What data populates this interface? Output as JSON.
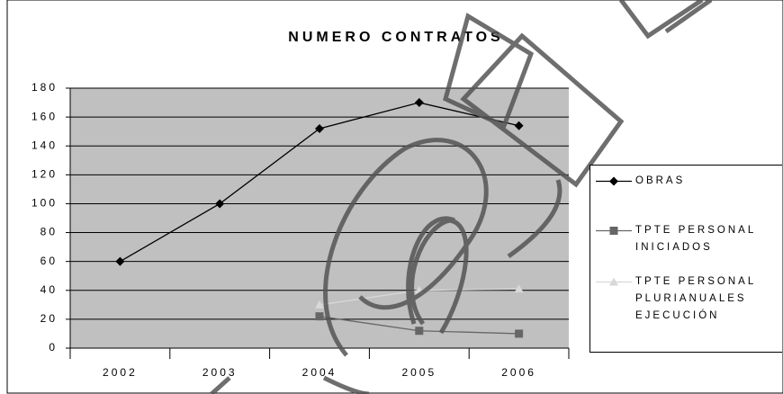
{
  "chart_data": {
    "type": "line",
    "title": "NUMERO CONTRATOS",
    "categories": [
      "2002",
      "2003",
      "2004",
      "2005",
      "2006"
    ],
    "series": [
      {
        "name": "OBRAS",
        "color": "#000000",
        "marker": "diamond",
        "values": [
          60,
          100,
          152,
          170,
          154
        ]
      },
      {
        "name": "TPTE PERSONAL INICIADOS",
        "color": "#666666",
        "marker": "square",
        "values": [
          null,
          null,
          22,
          12,
          10
        ]
      },
      {
        "name": "TPTE PERSONAL PLURIANUALES EJECUCIÓN",
        "color": "#d8d8d8",
        "marker": "triangle",
        "values": [
          null,
          null,
          30,
          40,
          41
        ]
      }
    ],
    "ylim": [
      0,
      180
    ],
    "yticks": [
      0,
      20,
      40,
      60,
      80,
      100,
      120,
      140,
      160,
      180
    ],
    "grid": true,
    "legend": "right"
  }
}
